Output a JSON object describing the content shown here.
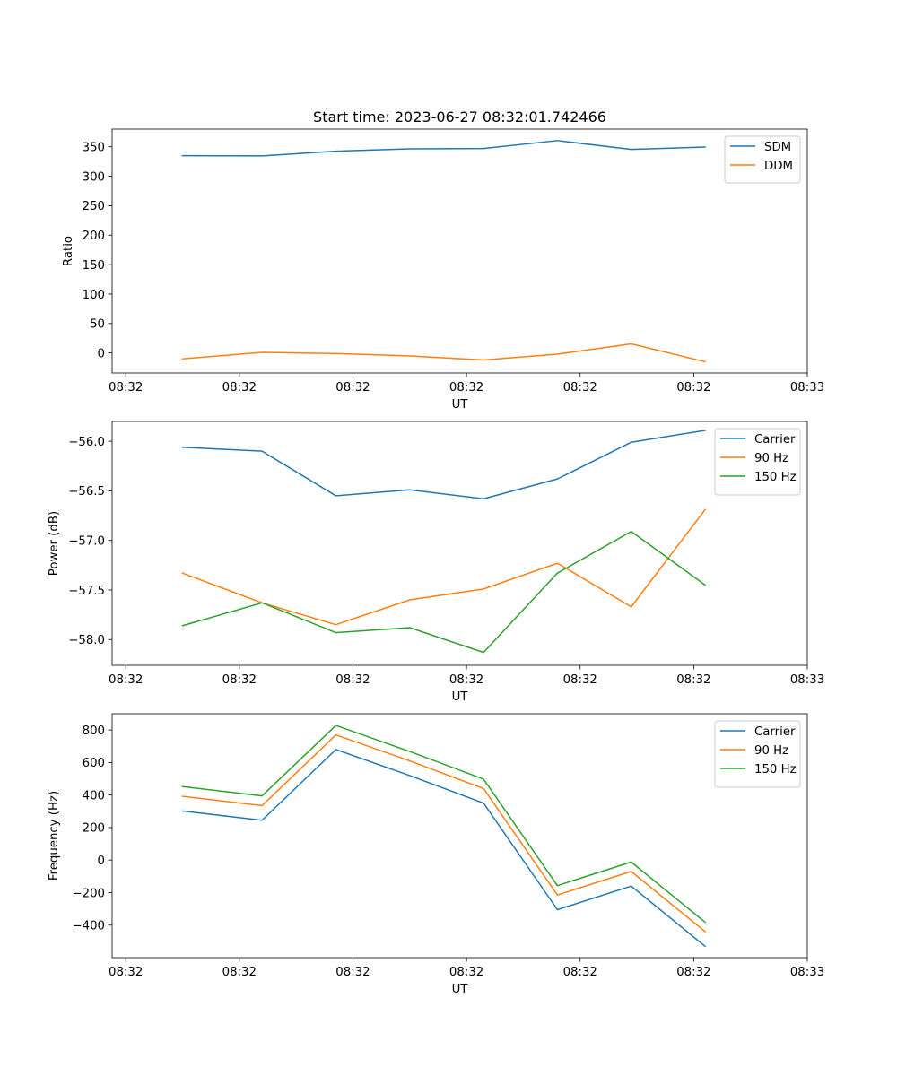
{
  "chart_data": [
    {
      "type": "line",
      "title": "Start time: 2023-06-27 08:32:01.742466",
      "xlabel": "UT",
      "ylabel": "Ratio",
      "x": [
        0.5,
        1.2,
        1.85,
        2.5,
        3.15,
        3.8,
        4.45,
        5.1
      ],
      "x_tick_labels": [
        "08:32",
        "08:32",
        "08:32",
        "08:32",
        "08:32",
        "08:32",
        "08:33"
      ],
      "x_ticks": [
        0,
        1,
        2,
        3,
        4,
        5,
        6
      ],
      "xlim": [
        -0.12,
        6.0
      ],
      "ylim": [
        -34,
        380
      ],
      "y_ticks": [
        0,
        50,
        100,
        150,
        200,
        250,
        300,
        350
      ],
      "legend_position": "upper-right",
      "grid": false,
      "series": [
        {
          "name": "SDM",
          "color": "#1f77b4",
          "values": [
            335,
            334.5,
            342.5,
            346.5,
            347,
            360.5,
            345.5,
            349.5
          ]
        },
        {
          "name": "DDM",
          "color": "#ff7f0e",
          "values": [
            -10,
            1,
            -1,
            -5,
            -12,
            -2,
            15.5,
            -15
          ]
        }
      ]
    },
    {
      "type": "line",
      "title": "",
      "xlabel": "UT",
      "ylabel": "Power (dB)",
      "x": [
        0.5,
        1.2,
        1.85,
        2.5,
        3.15,
        3.8,
        4.45,
        5.1
      ],
      "x_tick_labels": [
        "08:32",
        "08:32",
        "08:32",
        "08:32",
        "08:32",
        "08:32",
        "08:33"
      ],
      "x_ticks": [
        0,
        1,
        2,
        3,
        4,
        5,
        6
      ],
      "xlim": [
        -0.12,
        6.0
      ],
      "ylim": [
        -58.26,
        -55.8
      ],
      "y_ticks": [
        -58.0,
        -57.5,
        -57.0,
        -56.5,
        -56.0
      ],
      "y_tick_labels": [
        "−58.0",
        "−57.5",
        "−57.0",
        "−56.5",
        "−56.0"
      ],
      "legend_position": "upper-right",
      "grid": false,
      "series": [
        {
          "name": "Carrier",
          "color": "#1f77b4",
          "values": [
            -56.06,
            -56.1,
            -56.55,
            -56.49,
            -56.58,
            -56.38,
            -56.01,
            -55.89
          ]
        },
        {
          "name": "90 Hz",
          "color": "#ff7f0e",
          "values": [
            -57.33,
            -57.63,
            -57.85,
            -57.6,
            -57.49,
            -57.23,
            -57.67,
            -56.69
          ]
        },
        {
          "name": "150 Hz",
          "color": "#2ca02c",
          "values": [
            -57.86,
            -57.63,
            -57.93,
            -57.88,
            -58.13,
            -57.33,
            -56.91,
            -57.45
          ]
        }
      ]
    },
    {
      "type": "line",
      "title": "",
      "xlabel": "UT",
      "ylabel": "Frequency (Hz)",
      "x": [
        0.5,
        1.2,
        1.85,
        2.5,
        3.15,
        3.8,
        4.45,
        5.1
      ],
      "x_tick_labels": [
        "08:32",
        "08:32",
        "08:32",
        "08:32",
        "08:32",
        "08:32",
        "08:33"
      ],
      "x_ticks": [
        0,
        1,
        2,
        3,
        4,
        5,
        6
      ],
      "xlim": [
        -0.12,
        6.0
      ],
      "ylim": [
        -600,
        900
      ],
      "y_ticks": [
        -400,
        -200,
        0,
        200,
        400,
        600,
        800
      ],
      "y_tick_labels": [
        "−400",
        "−200",
        "0",
        "200",
        "400",
        "600",
        "800"
      ],
      "legend_position": "upper-right",
      "grid": false,
      "series": [
        {
          "name": "Carrier",
          "color": "#1f77b4",
          "values": [
            302,
            245,
            680,
            520,
            350,
            -305,
            -160,
            -530
          ]
        },
        {
          "name": "90 Hz",
          "color": "#ff7f0e",
          "values": [
            392,
            335,
            770,
            610,
            440,
            -215,
            -70,
            -440
          ]
        },
        {
          "name": "150 Hz",
          "color": "#2ca02c",
          "values": [
            452,
            395,
            828,
            668,
            498,
            -157,
            -12,
            -382
          ]
        }
      ]
    }
  ]
}
